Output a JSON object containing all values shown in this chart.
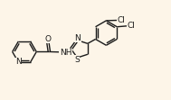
{
  "bg_color": "#fdf5e8",
  "bond_color": "#1a1a1a",
  "text_color": "#1a1a1a",
  "figsize": [
    1.89,
    1.11
  ],
  "dpi": 100,
  "font_size": 6.5,
  "lw": 1.0,
  "xlim": [
    0,
    9.5
  ],
  "ylim": [
    0,
    5.6
  ]
}
